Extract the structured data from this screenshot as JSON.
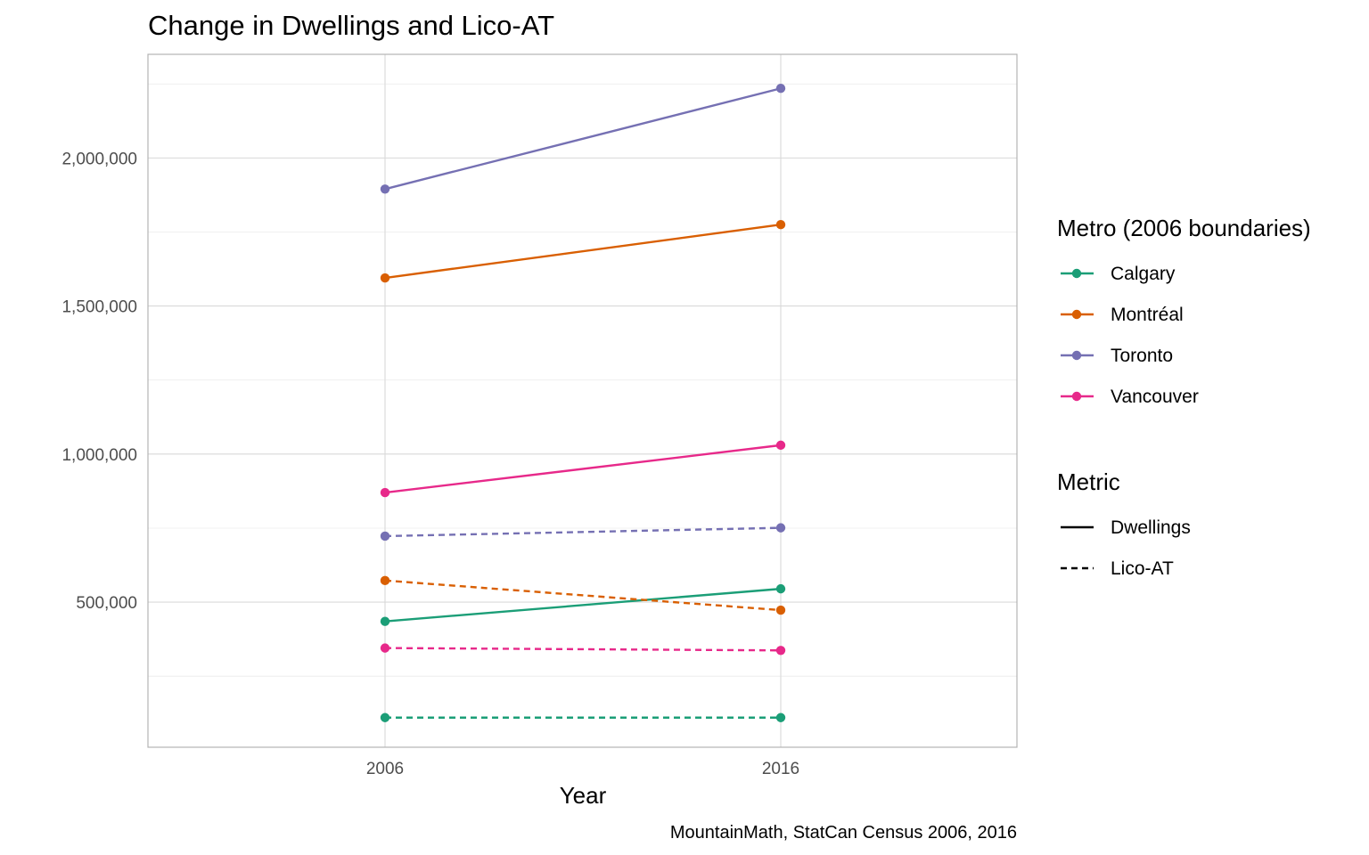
{
  "chart_data": {
    "type": "line",
    "title": "Change in Dwellings and Lico-AT",
    "xlabel": "Year",
    "ylabel": "",
    "caption": "MountainMath, StatCan Census 2006, 2016",
    "x": [
      2006,
      2016
    ],
    "x_ticks": [
      "2006",
      "2016"
    ],
    "y_ticks": [
      500000,
      1000000,
      1500000,
      2000000
    ],
    "y_tick_labels": [
      "500,000",
      "1,000,000",
      "1,500,000",
      "2,000,000"
    ],
    "ylim": [
      10000,
      2350000
    ],
    "grid": true,
    "legend_position": "right",
    "legends": [
      {
        "title": "Metro (2006 boundaries)",
        "entries": [
          {
            "label": "Calgary",
            "color": "#1b9e77"
          },
          {
            "label": "Montréal",
            "color": "#d95f02"
          },
          {
            "label": "Toronto",
            "color": "#7570b3"
          },
          {
            "label": "Vancouver",
            "color": "#e7298a"
          }
        ]
      },
      {
        "title": "Metric",
        "entries": [
          {
            "label": "Dwellings",
            "linetype": "solid"
          },
          {
            "label": "Lico-AT",
            "linetype": "dashed"
          }
        ]
      }
    ],
    "series": [
      {
        "metro": "Calgary",
        "metric": "Dwellings",
        "values": [
          435000,
          545000
        ]
      },
      {
        "metro": "Montréal",
        "metric": "Dwellings",
        "values": [
          1595000,
          1775000
        ]
      },
      {
        "metro": "Toronto",
        "metric": "Dwellings",
        "values": [
          1895000,
          2235000
        ]
      },
      {
        "metro": "Vancouver",
        "metric": "Dwellings",
        "values": [
          870000,
          1030000
        ]
      },
      {
        "metro": "Calgary",
        "metric": "Lico-AT",
        "values": [
          110000,
          110000
        ]
      },
      {
        "metro": "Montréal",
        "metric": "Lico-AT",
        "values": [
          573000,
          473000
        ]
      },
      {
        "metro": "Toronto",
        "metric": "Lico-AT",
        "values": [
          723000,
          751000
        ]
      },
      {
        "metro": "Vancouver",
        "metric": "Lico-AT",
        "values": [
          345000,
          337000
        ]
      }
    ]
  }
}
